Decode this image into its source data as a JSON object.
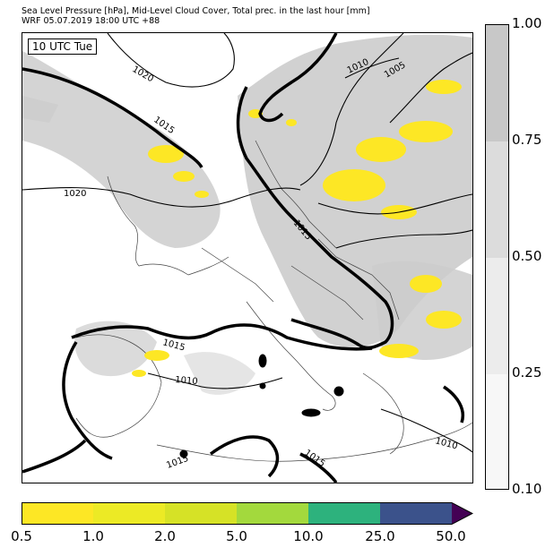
{
  "header": {
    "line1": "Sea Level Pressure [hPa], Mid-Level Cloud Cover, Total prec. in the last hour [mm]",
    "line2": "WRF 05.07.2019 18:00 UTC +88"
  },
  "map": {
    "time_label": "10 UTC Tue",
    "isobar_labels": [
      "1020",
      "1015",
      "1020",
      "1010",
      "1005",
      "1015",
      "1015",
      "1010",
      "1010",
      "1015",
      "1015"
    ]
  },
  "cloud_cover_legend": {
    "ticks": [
      "1.00",
      "0.75",
      "0.50",
      "0.25",
      "0.10"
    ],
    "colors": [
      "#c8c8c8",
      "#dcdcdc",
      "#ececec",
      "#f7f7f7"
    ]
  },
  "precip_legend": {
    "ticks": [
      "0.5",
      "1.0",
      "2.0",
      "5.0",
      "10.0",
      "25.0",
      "50.0"
    ],
    "colors": [
      "#fde725",
      "#ecea25",
      "#d6e226",
      "#a3d93d",
      "#2db27d",
      "#3b528b",
      "#440154"
    ]
  }
}
